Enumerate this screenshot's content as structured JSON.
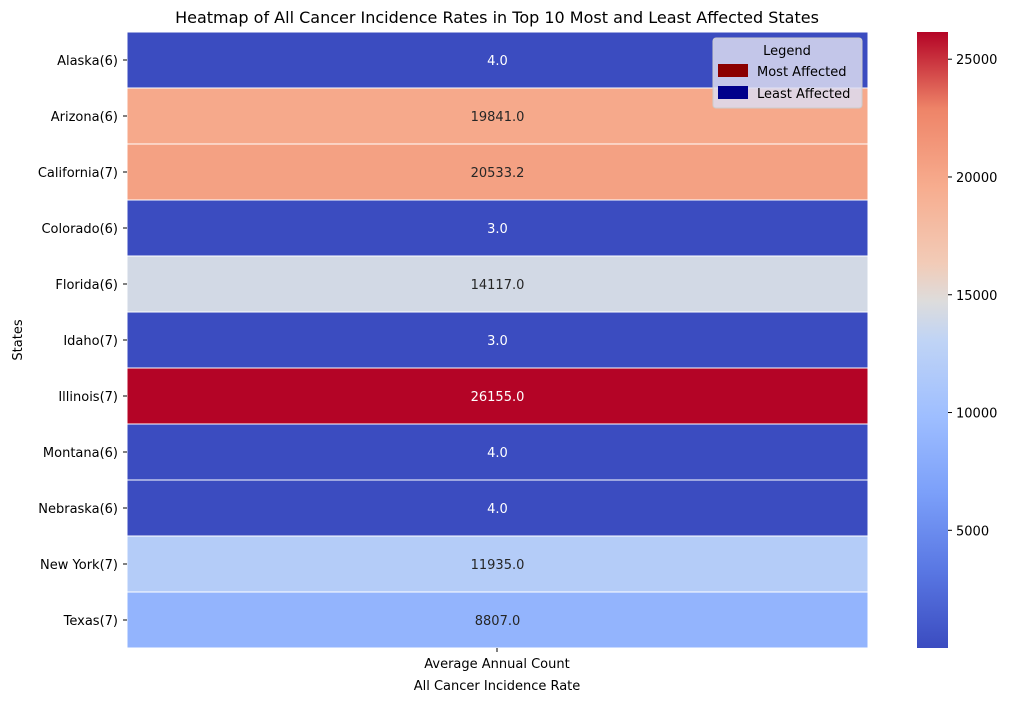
{
  "chart_data": {
    "type": "heatmap",
    "title": "Heatmap of All Cancer Incidence Rates in Top 10 Most and Least Affected States",
    "xlabel": "All Cancer Incidence Rate",
    "ylabel": "States",
    "x_categories": [
      "Average Annual Count"
    ],
    "y_categories": [
      "Alaska(6)",
      "Arizona(6)",
      "California(7)",
      "Colorado(6)",
      "Florida(6)",
      "Idaho(7)",
      "Illinois(7)",
      "Montana(6)",
      "Nebraska(6)",
      "New York(7)",
      "Texas(7)"
    ],
    "values": [
      4.0,
      19841.0,
      20533.2,
      3.0,
      14117.0,
      3.0,
      26155.0,
      4.0,
      4.0,
      11935.0,
      8807.0
    ],
    "value_labels": [
      "4.0",
      "19841.0",
      "20533.2",
      "3.0",
      "14117.0",
      "3.0",
      "26155.0",
      "4.0",
      "4.0",
      "11935.0",
      "8807.0"
    ],
    "colormap": "coolwarm",
    "colorbar": {
      "range": [
        3.0,
        26155.0
      ],
      "ticks": [
        5000,
        10000,
        15000,
        20000,
        25000
      ]
    },
    "legend": {
      "title": "Legend",
      "placement": "top-right",
      "entries": [
        {
          "label": "Most Affected",
          "color": "#8b0000"
        },
        {
          "label": "Least Affected",
          "color": "#00008b"
        }
      ]
    }
  }
}
